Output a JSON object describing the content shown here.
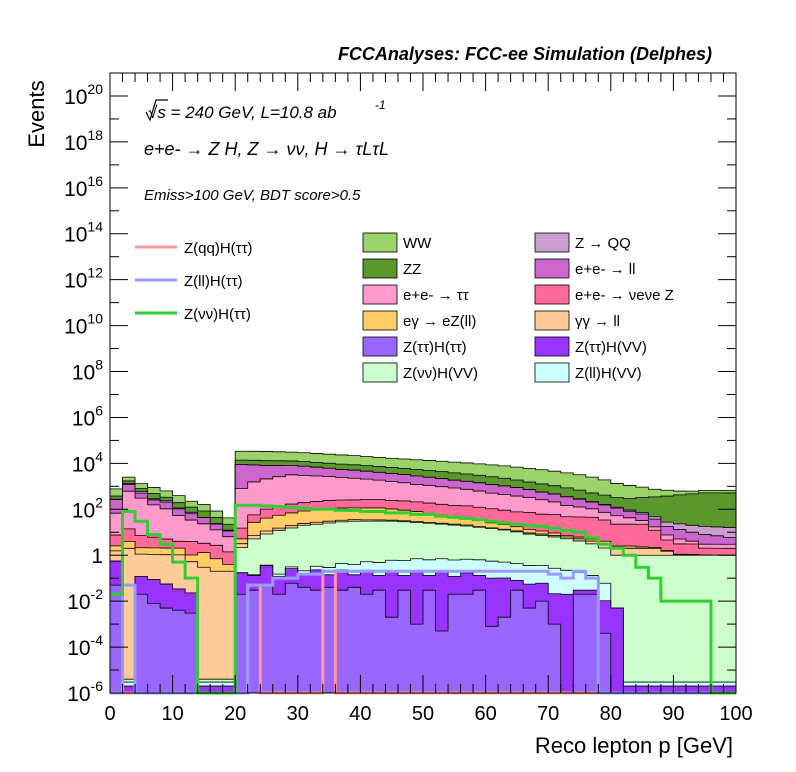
{
  "chart_data": {
    "type": "area",
    "header": "FCCAnalyses: FCC-ee Simulation (Delphes)",
    "xlabel": "Reco lepton p [GeV]",
    "ylabel": "Events",
    "xlim": [
      0,
      100
    ],
    "ylim": [
      1e-06,
      1e+21
    ],
    "ylog": true,
    "grid": false,
    "x_ticks": [
      "0",
      "10",
      "20",
      "30",
      "40",
      "50",
      "60",
      "70",
      "80",
      "90",
      "100"
    ],
    "y_ticks": [
      {
        "v": 1e-06,
        "base": "10",
        "exp": "-6"
      },
      {
        "v": 0.0001,
        "base": "10",
        "exp": "-4"
      },
      {
        "v": 0.01,
        "base": "10",
        "exp": "-2"
      },
      {
        "v": 1,
        "base": "1",
        "exp": ""
      },
      {
        "v": 100.0,
        "base": "10",
        "exp": "2"
      },
      {
        "v": 10000.0,
        "base": "10",
        "exp": "4"
      },
      {
        "v": 1000000.0,
        "base": "10",
        "exp": "6"
      },
      {
        "v": 100000000.0,
        "base": "10",
        "exp": "8"
      },
      {
        "v": 10000000000.0,
        "base": "10",
        "exp": "10"
      },
      {
        "v": 1000000000000.0,
        "base": "10",
        "exp": "12"
      },
      {
        "v": 100000000000000.0,
        "base": "10",
        "exp": "14"
      },
      {
        "v": 1e+16,
        "base": "10",
        "exp": "16"
      },
      {
        "v": 1e+18,
        "base": "10",
        "exp": "18"
      },
      {
        "v": 1e+20,
        "base": "10",
        "exp": "20"
      }
    ],
    "annotations": {
      "energy": "√s = 240 GeV, L=10.8 ab",
      "energy_exp": "-1",
      "process": "e+e- → Z H, Z → νν, H → τLτL",
      "selection": "Emiss>100 GeV, BDT score>0.5"
    },
    "stack_legend": [
      {
        "label": "WW",
        "color": "#99d36a"
      },
      {
        "label": "Z → QQ",
        "color": "#cc9ed0"
      },
      {
        "label": "ZZ",
        "color": "#5a972d"
      },
      {
        "label": "e+e- → ll",
        "color": "#cc66cc"
      },
      {
        "label": "e+e- → ττ",
        "color": "#ff99cc"
      },
      {
        "label": "e+e- → νeνe Z",
        "color": "#ff6a99"
      },
      {
        "label": "eγ → eZ(ll)",
        "color": "#ffcc66"
      },
      {
        "label": "γγ → ll",
        "color": "#ffcc99"
      },
      {
        "label": "Z(ττ)H(ττ)",
        "color": "#9966ff"
      },
      {
        "label": "Z(ττ)H(VV)",
        "color": "#9933ff"
      },
      {
        "label": "Z(νν)H(VV)",
        "color": "#ccffcc"
      },
      {
        "label": "Z(ll)H(VV)",
        "color": "#ccffff"
      }
    ],
    "signal_legend": [
      {
        "label": "Z(qq)H(ττ)",
        "color": "#ff9999"
      },
      {
        "label": "Z(ll)H(ττ)",
        "color": "#9999ff"
      },
      {
        "label": "Z(νν)H(ττ)",
        "color": "#33cc33"
      }
    ],
    "bin_edges": [
      0,
      2,
      4,
      6,
      8,
      10,
      12,
      14,
      16,
      18,
      20,
      22,
      24,
      26,
      28,
      30,
      32,
      34,
      36,
      38,
      40,
      42,
      44,
      46,
      48,
      50,
      52,
      54,
      56,
      58,
      60,
      62,
      64,
      66,
      68,
      70,
      72,
      74,
      76,
      78,
      80,
      82,
      84,
      86,
      88,
      90,
      92,
      94,
      96,
      98,
      100
    ],
    "stacks": [
      {
        "name": "Z(ττ)H(ττ)",
        "color": "#9966ff",
        "values": [
          0.05,
          1e-06,
          0.02,
          0.008,
          0.005,
          0.004,
          0.003,
          1e-06,
          1e-06,
          1e-06,
          0.02,
          0.03,
          0.05,
          0.02,
          0.06,
          0.04,
          0.03,
          0.04,
          0.03,
          0.04,
          0.02,
          0.03,
          0.002,
          0.03,
          0.001,
          0.03,
          0.0005,
          0.02,
          0.02,
          0.03,
          0.0008,
          0.002,
          0.03,
          0.005,
          0.01,
          0.001,
          1e-06,
          0.02,
          0.02,
          0.0004,
          1e-06,
          1e-06,
          1e-06,
          1e-06,
          1e-06,
          1e-06,
          1e-06,
          1e-06,
          1e-06,
          1e-06
        ]
      },
      {
        "name": "Z(ττ)H(VV)",
        "color": "#9933ff",
        "values": [
          0.5,
          1e-06,
          0.1,
          0.08,
          0.05,
          0.03,
          0.02,
          1e-06,
          1e-06,
          1e-06,
          0.15,
          0.1,
          0.3,
          0.1,
          0.2,
          0.1,
          0.2,
          0.1,
          0.2,
          0.1,
          0.2,
          0.1,
          0.2,
          0.1,
          0.2,
          0.1,
          0.2,
          0.1,
          0.15,
          0.1,
          0.1,
          0.1,
          0.05,
          0.05,
          0.05,
          0.02,
          0.02,
          0.01,
          0.01,
          0.01,
          0.005,
          1e-06,
          1e-06,
          1e-06,
          1e-06,
          1e-06,
          1e-06,
          1e-06,
          1e-06,
          1e-06
        ]
      },
      {
        "name": "Z(ll)H(VV)",
        "color": "#ccffff",
        "values": [
          1e-06,
          1e-06,
          1e-06,
          1e-06,
          1e-06,
          1e-06,
          1e-06,
          1e-06,
          1e-06,
          1e-06,
          0.005,
          0.01,
          0.02,
          0.03,
          0.05,
          0.07,
          0.1,
          0.15,
          0.2,
          0.25,
          0.3,
          0.35,
          0.4,
          0.45,
          0.5,
          0.5,
          0.5,
          0.5,
          0.5,
          0.5,
          0.45,
          0.4,
          0.35,
          0.3,
          0.3,
          0.25,
          0.2,
          0.15,
          0.1,
          0.05,
          1e-06,
          1e-06,
          1e-06,
          1e-06,
          1e-06,
          1e-06,
          1e-06,
          1e-06,
          1e-06,
          1e-06
        ]
      },
      {
        "name": "Z(νν)H(VV)",
        "color": "#ccffcc",
        "values": [
          1e-06,
          1e-06,
          1e-06,
          1e-06,
          1e-06,
          1e-06,
          1e-06,
          1e-06,
          1e-06,
          1e-06,
          2,
          5,
          8,
          12,
          15,
          20,
          22,
          25,
          28,
          30,
          30,
          30,
          30,
          28,
          26,
          24,
          22,
          20,
          18,
          16,
          14,
          12,
          10,
          8,
          7,
          6,
          5,
          4,
          3,
          2,
          1,
          1,
          1,
          1,
          1,
          1,
          1,
          1,
          1,
          1
        ]
      },
      {
        "name": "γγ → ll",
        "color": "#ffcc99",
        "values": [
          1,
          2,
          1,
          1,
          1,
          1,
          0.5,
          0.3,
          0.2,
          0.2,
          1,
          2,
          3,
          3,
          4,
          4,
          5,
          5,
          5,
          5,
          4,
          4,
          3,
          3,
          3,
          2,
          2,
          2,
          2,
          1,
          1,
          1,
          1,
          1,
          1,
          1,
          1,
          1,
          1,
          1,
          1,
          1,
          1,
          1,
          0.5,
          0.05,
          0.05,
          0.01,
          1e-06,
          1e-06
        ]
      },
      {
        "name": "eγ → eZ(ll)",
        "color": "#ffcc66",
        "values": [
          1,
          2,
          1,
          1,
          1,
          1,
          0.5,
          1,
          0.5,
          0.2,
          2,
          20,
          30,
          40,
          50,
          60,
          70,
          80,
          80,
          80,
          80,
          80,
          70,
          60,
          50,
          40,
          30,
          25,
          20,
          15,
          10,
          8,
          6,
          4,
          3,
          2,
          1,
          1,
          1,
          1,
          0.5,
          0.5,
          0.3,
          0.2,
          0.1,
          0.05,
          0.03,
          0.02,
          0.01,
          1e-06
        ]
      },
      {
        "name": "e+e- → νeνe Z",
        "color": "#ff6a99",
        "values": [
          5,
          10,
          5,
          4,
          3,
          2,
          3,
          2,
          2,
          1,
          10,
          30,
          60,
          80,
          100,
          110,
          120,
          130,
          140,
          140,
          150,
          150,
          140,
          140,
          130,
          120,
          110,
          100,
          100,
          90,
          80,
          70,
          60,
          60,
          50,
          50,
          40,
          40,
          40,
          30,
          20,
          20,
          20,
          10,
          3,
          2,
          2,
          1,
          1,
          1
        ]
      },
      {
        "name": "e+e- → ττ",
        "color": "#ff99cc",
        "values": [
          60,
          600,
          300,
          150,
          100,
          50,
          30,
          20,
          10,
          5,
          800,
          1500,
          2000,
          2500,
          3000,
          2800,
          2600,
          2400,
          2200,
          2000,
          1800,
          1600,
          1400,
          1200,
          1000,
          900,
          800,
          700,
          600,
          500,
          400,
          350,
          300,
          250,
          200,
          150,
          100,
          80,
          60,
          40,
          30,
          20,
          10,
          5,
          3,
          2,
          1,
          1,
          1,
          1
        ]
      },
      {
        "name": "e+e- → ll",
        "color": "#cc66cc",
        "values": [
          200,
          600,
          200,
          100,
          100,
          50,
          30,
          20,
          10,
          5,
          8000,
          7000,
          6000,
          5500,
          5000,
          4500,
          4000,
          3500,
          3000,
          2800,
          2500,
          2200,
          2000,
          1800,
          1600,
          1400,
          1200,
          1000,
          900,
          800,
          700,
          600,
          500,
          400,
          300,
          250,
          200,
          150,
          100,
          80,
          60,
          40,
          30,
          20,
          10,
          8,
          6,
          5,
          4,
          3
        ]
      },
      {
        "name": "Z → QQ",
        "color": "#cc9ed0",
        "values": [
          10,
          100,
          100,
          30,
          30,
          10,
          10,
          1,
          1,
          1,
          10,
          10,
          10,
          10,
          10,
          10,
          10,
          10,
          10,
          10,
          10,
          10,
          10,
          10,
          10,
          10,
          10,
          10,
          10,
          10,
          10,
          10,
          10,
          10,
          10,
          10,
          10,
          10,
          10,
          10,
          10,
          10,
          10,
          10,
          10,
          10,
          10,
          10,
          10,
          10
        ]
      },
      {
        "name": "ZZ",
        "color": "#5a972d",
        "values": [
          100,
          400,
          200,
          200,
          100,
          80,
          50,
          40,
          20,
          10,
          5000,
          5000,
          5000,
          4800,
          4600,
          4400,
          4200,
          4000,
          3800,
          3600,
          3400,
          3200,
          3000,
          2800,
          2600,
          2400,
          2200,
          2000,
          1800,
          1600,
          1400,
          1200,
          1000,
          800,
          700,
          600,
          500,
          400,
          300,
          250,
          200,
          200,
          250,
          300,
          350,
          400,
          450,
          500,
          500,
          500
        ]
      },
      {
        "name": "WW",
        "color": "#99d36a",
        "values": [
          400,
          800,
          500,
          400,
          300,
          200,
          100,
          80,
          40,
          20,
          20000,
          20000,
          20000,
          19000,
          18000,
          17000,
          16000,
          15000,
          14000,
          13000,
          12000,
          11000,
          10000,
          9500,
          9000,
          8500,
          8000,
          7500,
          7000,
          6500,
          6000,
          5500,
          5000,
          4500,
          4000,
          3500,
          3000,
          2500,
          2000,
          1500,
          1000,
          800,
          600,
          400,
          300,
          200,
          150,
          150,
          150,
          150
        ]
      }
    ],
    "signals": [
      {
        "name": "Z(qq)H(ττ)",
        "color": "#ff9999",
        "values": [
          1e-07,
          1e-07,
          1e-07,
          1e-07,
          1e-07,
          1e-07,
          1e-07,
          1e-07,
          1e-07,
          1e-07,
          1e-07,
          0.05,
          1e-07,
          1e-07,
          1e-07,
          1e-07,
          1e-07,
          0.2,
          1e-07,
          1e-07,
          1e-07,
          1e-07,
          1e-07,
          1e-07,
          1e-07,
          1e-07,
          1e-07,
          1e-07,
          1e-07,
          1e-07,
          1e-07,
          1e-07,
          1e-07,
          1e-07,
          1e-07,
          1e-07,
          1e-07,
          1e-07,
          1e-07,
          1e-07,
          1e-07,
          1e-07,
          1e-07,
          1e-07,
          1e-07,
          1e-07,
          1e-07,
          1e-07,
          1e-07,
          1e-07
        ]
      },
      {
        "name": "Z(ll)H(ττ)",
        "color": "#9999ff",
        "values": [
          1e-07,
          0.05,
          1e-07,
          1e-07,
          1e-07,
          1e-07,
          1e-07,
          1e-07,
          1e-07,
          1e-07,
          1e-07,
          0.05,
          0.05,
          0.1,
          0.1,
          0.15,
          0.15,
          0.2,
          0.2,
          0.2,
          0.2,
          0.2,
          0.2,
          0.2,
          0.2,
          0.2,
          0.2,
          0.2,
          0.2,
          0.2,
          0.2,
          0.2,
          0.2,
          0.2,
          0.2,
          0.15,
          0.1,
          0.2,
          0.1,
          1e-07,
          1e-07,
          1e-07,
          1e-07,
          1e-07,
          1e-07,
          1e-07,
          1e-07,
          1e-07,
          1e-07,
          1e-07
        ]
      },
      {
        "name": "Z(νν)H(ττ)",
        "color": "#33cc33",
        "values": [
          0.02,
          80,
          30,
          8,
          3,
          0.5,
          0.1,
          1e-07,
          1e-07,
          1e-07,
          150,
          150,
          140,
          130,
          120,
          110,
          100,
          100,
          90,
          90,
          80,
          80,
          70,
          70,
          60,
          60,
          50,
          45,
          40,
          35,
          30,
          25,
          22,
          20,
          18,
          15,
          12,
          10,
          6,
          3,
          2,
          1,
          0.3,
          0.1,
          0.01,
          0.01,
          0.01,
          0.01,
          1e-07,
          1e-07
        ]
      }
    ]
  }
}
